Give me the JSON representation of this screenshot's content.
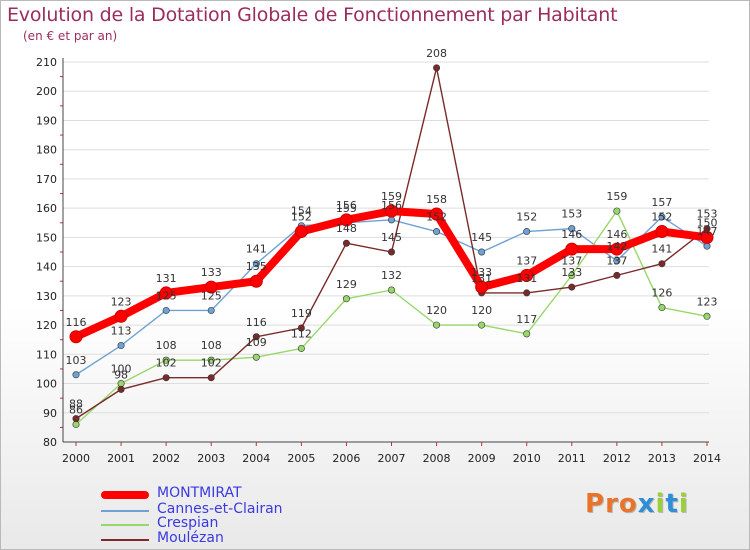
{
  "chart_data": {
    "type": "line",
    "title": "Evolution de la Dotation Globale de Fonctionnement par Habitant",
    "subtitle": "(en € et par an)",
    "x": [
      2000,
      2001,
      2002,
      2003,
      2004,
      2005,
      2006,
      2007,
      2008,
      2009,
      2010,
      2011,
      2012,
      2013,
      2014
    ],
    "ylim": [
      80,
      210
    ],
    "yticks": [
      80,
      90,
      100,
      110,
      120,
      130,
      140,
      150,
      160,
      170,
      180,
      190,
      200,
      210
    ],
    "grid": "horizontal",
    "legend": "bottom-left",
    "series": [
      {
        "name": "MONTMIRAT",
        "color": "#ff0000",
        "values": [
          116,
          123,
          131,
          133,
          135,
          152,
          156,
          159,
          158,
          133,
          137,
          146,
          146,
          152,
          150
        ]
      },
      {
        "name": "Cannes-et-Clairan",
        "color": "#6fa2d4",
        "values": [
          103,
          113,
          125,
          125,
          141,
          154,
          155,
          156,
          152,
          145,
          152,
          153,
          142,
          157,
          147
        ]
      },
      {
        "name": "Crespian",
        "color": "#98d86a",
        "values": [
          86,
          100,
          108,
          108,
          109,
          112,
          129,
          132,
          120,
          120,
          117,
          137,
          159,
          126,
          123
        ]
      },
      {
        "name": "Moulézan",
        "color": "#7a2a2a",
        "values": [
          88,
          98,
          102,
          102,
          116,
          119,
          148,
          145,
          208,
          131,
          131,
          133,
          137,
          141,
          153
        ]
      }
    ]
  },
  "brand": {
    "text": "Proxiti",
    "colors": [
      "#e8742a",
      "#2f8fd6",
      "#9bcf3a"
    ]
  }
}
